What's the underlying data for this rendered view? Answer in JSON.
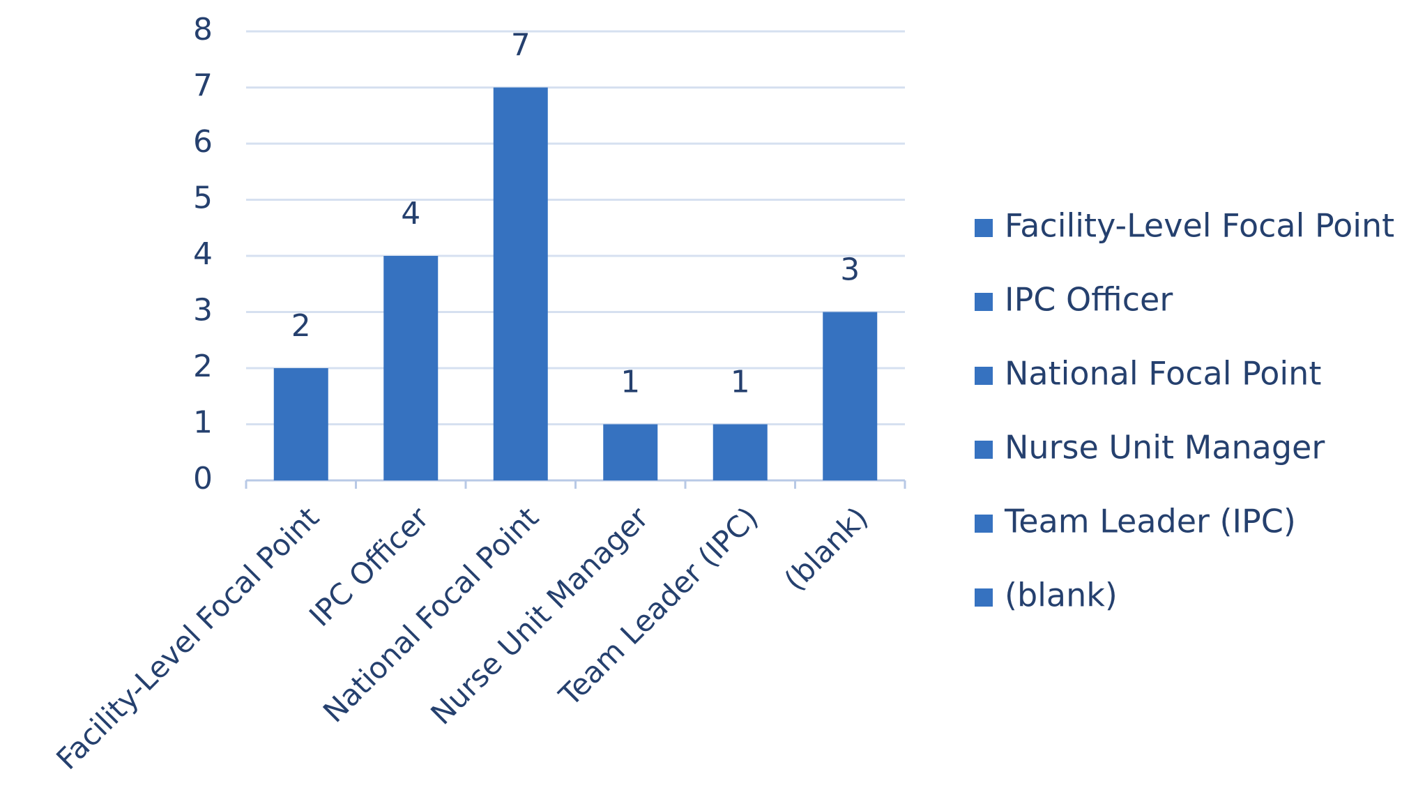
{
  "chart_data": {
    "type": "bar",
    "categories": [
      "Facility-Level Focal Point",
      "IPC Officer",
      "National Focal Point",
      "Nurse Unit Manager",
      "Team Leader (IPC)",
      "(blank)"
    ],
    "values": [
      2,
      4,
      7,
      1,
      1,
      3
    ],
    "color": "#3672c0",
    "ylim": [
      0,
      8
    ],
    "yticks": [
      0,
      1,
      2,
      3,
      4,
      5,
      6,
      7,
      8
    ],
    "grid": true,
    "legend": "right"
  }
}
